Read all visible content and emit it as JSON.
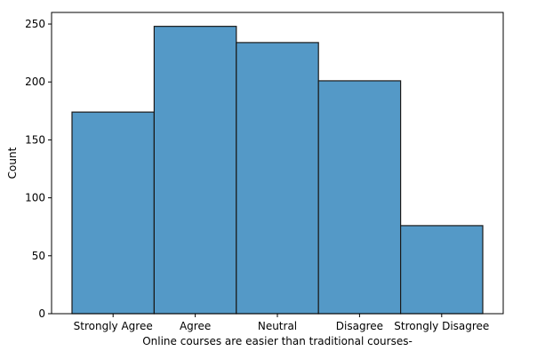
{
  "chart_data": {
    "type": "bar",
    "title": "",
    "xlabel": "Online courses are easier than traditional courses-",
    "ylabel": "Count",
    "categories": [
      "Strongly Agree",
      "Agree",
      "Neutral",
      "Disagree",
      "Strongly Disagree"
    ],
    "values": [
      174,
      248,
      234,
      201,
      76
    ],
    "ylim": [
      0,
      260
    ],
    "yticks": [
      0,
      50,
      100,
      150,
      200,
      250
    ],
    "grid": false,
    "bar_color": "#5499c7",
    "edge_color": "#1a1a1a"
  }
}
